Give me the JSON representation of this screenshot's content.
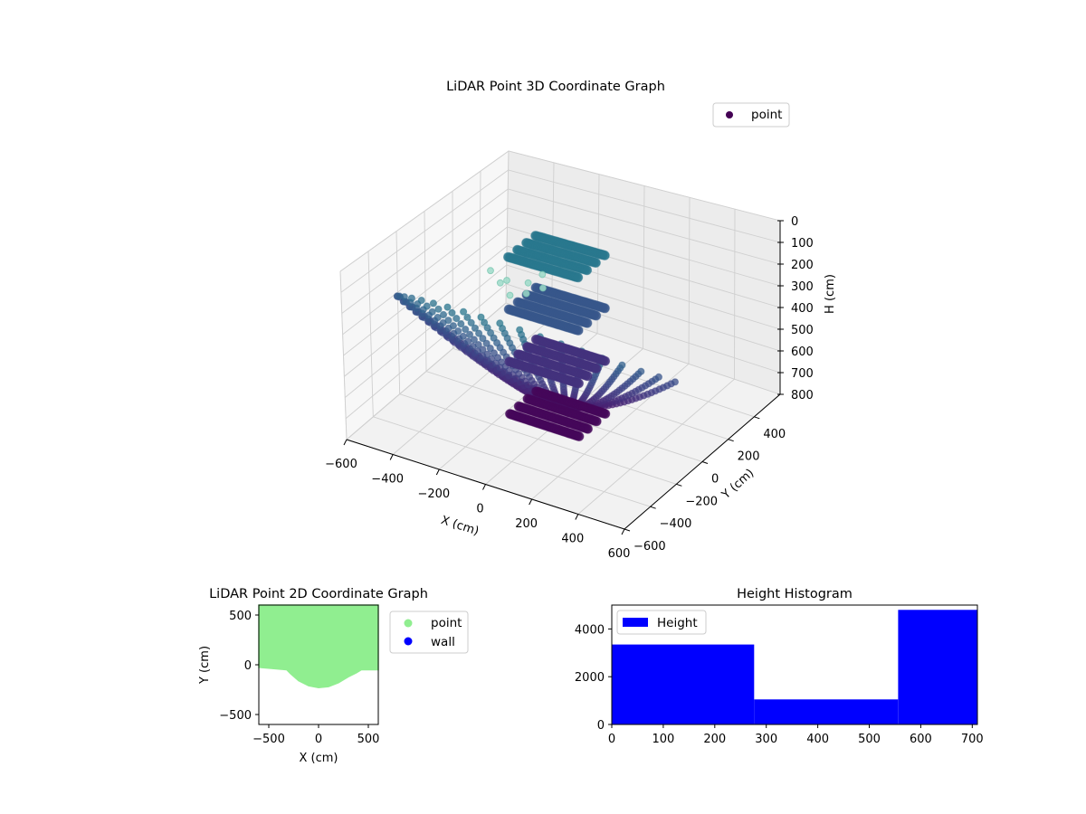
{
  "chart_data": [
    {
      "type": "scatter",
      "projection": "3d",
      "title": "LiDAR Point 3D Coordinate Graph",
      "xlabel": "X (cm)",
      "ylabel": "Y (cm)",
      "zlabel": "H (cm)",
      "xlim": [
        -600,
        600
      ],
      "ylim": [
        -600,
        600
      ],
      "zlim": [
        0,
        800
      ],
      "z_axis_inverted": true,
      "x_ticks": [
        "−600",
        "−400",
        "−200",
        "0",
        "200",
        "400",
        "600"
      ],
      "y_ticks": [
        "−600",
        "−400",
        "−200",
        "0",
        "200",
        "400"
      ],
      "z_ticks": [
        "0",
        "100",
        "200",
        "300",
        "400",
        "500",
        "600",
        "700",
        "800"
      ],
      "grid": true,
      "legend": {
        "placement": "top-right",
        "entries": [
          "point"
        ]
      },
      "colormap": "viridis",
      "series": [
        {
          "name": "point",
          "color": "#440154",
          "description_points": {
            "dome_rings": {
              "count": 26,
              "radius_range": [
                60,
                600
              ],
              "start_angle_deg": 200,
              "end_angle_deg": 340,
              "height_range": [
                0,
                720
              ]
            },
            "wall": {
              "x": [
                -150,
                150
              ],
              "y": [
                -150,
                50
              ],
              "height": [
                0,
                760
              ]
            },
            "outliers": [
              {
                "x": -560,
                "y": 560,
                "h": 720
              },
              {
                "x": -500,
                "y": 580,
                "h": 700
              },
              {
                "x": -580,
                "y": 520,
                "h": 640
              },
              {
                "x": -540,
                "y": 500,
                "h": 600
              },
              {
                "x": -470,
                "y": 540,
                "h": 610
              },
              {
                "x": -420,
                "y": 560,
                "h": 560
              },
              {
                "x": -600,
                "y": 480,
                "h": 560
              },
              {
                "x": -440,
                "y": 600,
                "h": 660
              }
            ]
          }
        }
      ]
    },
    {
      "type": "scatter",
      "title": "LiDAR Point 2D Coordinate Graph",
      "xlabel": "X (cm)",
      "ylabel": "Y (cm)",
      "xlim": [
        -600,
        600
      ],
      "ylim": [
        -600,
        600
      ],
      "x_ticks": [
        "−500",
        "0",
        "500"
      ],
      "y_ticks": [
        "−500",
        "0",
        "500"
      ],
      "legend": {
        "placement": "outside-right",
        "entries": [
          "point",
          "wall"
        ]
      },
      "series": [
        {
          "name": "point",
          "color": "#90ee90",
          "boundary": [
            [
              -600,
              600
            ],
            [
              600,
              600
            ],
            [
              600,
              -50
            ],
            [
              430,
              -50
            ],
            [
              380,
              -80
            ],
            [
              300,
              -120
            ],
            [
              200,
              -180
            ],
            [
              100,
              -220
            ],
            [
              0,
              -230
            ],
            [
              -100,
              -210
            ],
            [
              -200,
              -160
            ],
            [
              -280,
              -90
            ],
            [
              -320,
              -50
            ],
            [
              -600,
              -25
            ]
          ]
        },
        {
          "name": "wall",
          "color": "#0000ff",
          "boundary": []
        }
      ]
    },
    {
      "type": "bar",
      "subtype": "histogram",
      "title": "Height Histogram",
      "xlabel": "",
      "ylabel": "",
      "xlim": [
        0,
        710
      ],
      "ylim": [
        0,
        5000
      ],
      "x_ticks": [
        "0",
        "100",
        "200",
        "300",
        "400",
        "500",
        "600",
        "700"
      ],
      "y_ticks": [
        "0",
        "2000",
        "4000"
      ],
      "legend": {
        "placement": "top-left",
        "entries": [
          "Height"
        ]
      },
      "series": [
        {
          "name": "Height",
          "color": "#0000ff",
          "bins": [
            {
              "x0": 0,
              "x1": 276.5,
              "value": 3350
            },
            {
              "x0": 276.5,
              "x1": 556,
              "value": 1050
            },
            {
              "x0": 556,
              "x1": 710,
              "value": 4800
            }
          ]
        }
      ]
    }
  ]
}
